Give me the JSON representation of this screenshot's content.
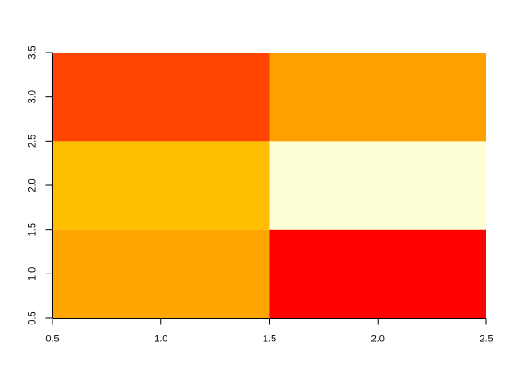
{
  "chart_data": {
    "type": "heatmap",
    "title": "",
    "xlabel": "",
    "ylabel": "",
    "xlim": [
      0.5,
      2.5
    ],
    "ylim": [
      0.5,
      3.5
    ],
    "x_ticks": [
      "0.5",
      "1.0",
      "1.5",
      "2.0",
      "2.5"
    ],
    "y_ticks": [
      "0.5",
      "1.0",
      "1.5",
      "2.0",
      "2.5",
      "3.0",
      "3.5"
    ],
    "grid": false,
    "cells": [
      {
        "x": 1,
        "y": 1,
        "color": "#FFA500"
      },
      {
        "x": 2,
        "y": 1,
        "color": "#FF0000"
      },
      {
        "x": 1,
        "y": 2,
        "color": "#FFBF00"
      },
      {
        "x": 2,
        "y": 2,
        "color": "#FFFFD5"
      },
      {
        "x": 1,
        "y": 3,
        "color": "#FF4500"
      },
      {
        "x": 2,
        "y": 3,
        "color": "#FFA000"
      }
    ]
  }
}
